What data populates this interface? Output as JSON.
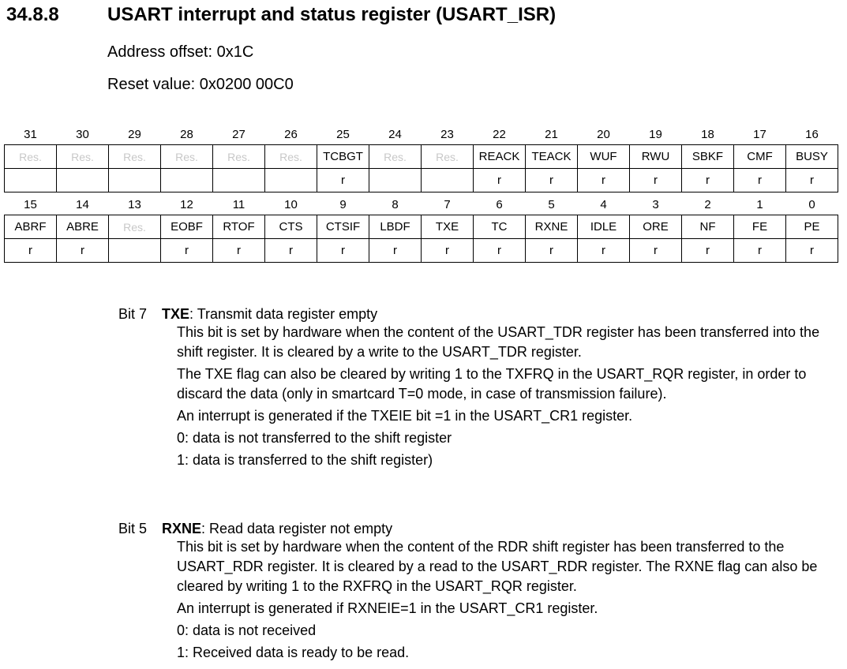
{
  "section": {
    "number": "34.8.8",
    "title": "USART interrupt and status register (USART_ISR)",
    "address_offset": "Address offset: 0x1C",
    "reset_value": "Reset value: 0x0200 00C0"
  },
  "register": {
    "upper": {
      "bits": [
        "31",
        "30",
        "29",
        "28",
        "27",
        "26",
        "25",
        "24",
        "23",
        "22",
        "21",
        "20",
        "19",
        "18",
        "17",
        "16"
      ],
      "names": [
        "Res.",
        "Res.",
        "Res.",
        "Res.",
        "Res.",
        "Res.",
        "TCBGT",
        "Res.",
        "Res.",
        "REACK",
        "TEACK",
        "WUF",
        "RWU",
        "SBKF",
        "CMF",
        "BUSY"
      ],
      "access": [
        "",
        "",
        "",
        "",
        "",
        "",
        "r",
        "",
        "",
        "r",
        "r",
        "r",
        "r",
        "r",
        "r",
        "r"
      ]
    },
    "lower": {
      "bits": [
        "15",
        "14",
        "13",
        "12",
        "11",
        "10",
        "9",
        "8",
        "7",
        "6",
        "5",
        "4",
        "3",
        "2",
        "1",
        "0"
      ],
      "names": [
        "ABRF",
        "ABRE",
        "Res.",
        "EOBF",
        "RTOF",
        "CTS",
        "CTSIF",
        "LBDF",
        "TXE",
        "TC",
        "RXNE",
        "IDLE",
        "ORE",
        "NF",
        "FE",
        "PE"
      ],
      "access": [
        "r",
        "r",
        "",
        "r",
        "r",
        "r",
        "r",
        "r",
        "r",
        "r",
        "r",
        "r",
        "r",
        "r",
        "r",
        "r"
      ]
    }
  },
  "descriptions": {
    "txe": {
      "bit_label": "Bit 7",
      "name": "TXE",
      "summary": ": Transmit data register empty",
      "p1": "This bit is set by hardware when the content of the USART_TDR register has been transferred into the shift register. It is cleared by a write to the USART_TDR register.",
      "p2": "The TXE flag can also be cleared by writing 1 to the TXFRQ in the USART_RQR register, in order to discard the data (only in smartcard T=0 mode, in case of transmission failure).",
      "p3": "An interrupt is generated if the TXEIE bit =1 in the USART_CR1 register.",
      "p4": "0: data is not transferred to the shift register",
      "p5": "1: data is transferred to the shift register)"
    },
    "rxne": {
      "bit_label": "Bit 5",
      "name": "RXNE",
      "summary": ": Read data register not empty",
      "p1": "This bit is set by hardware when the content of the RDR shift register has been transferred to the USART_RDR register. It is cleared by a read to the USART_RDR register. The RXNE flag can also be cleared by writing 1 to the RXFRQ in the USART_RQR register.",
      "p2": "An interrupt is generated if RXNEIE=1 in the USART_CR1 register.",
      "p3": "0: data is not received",
      "p4": "1: Received data is ready to be read."
    }
  }
}
